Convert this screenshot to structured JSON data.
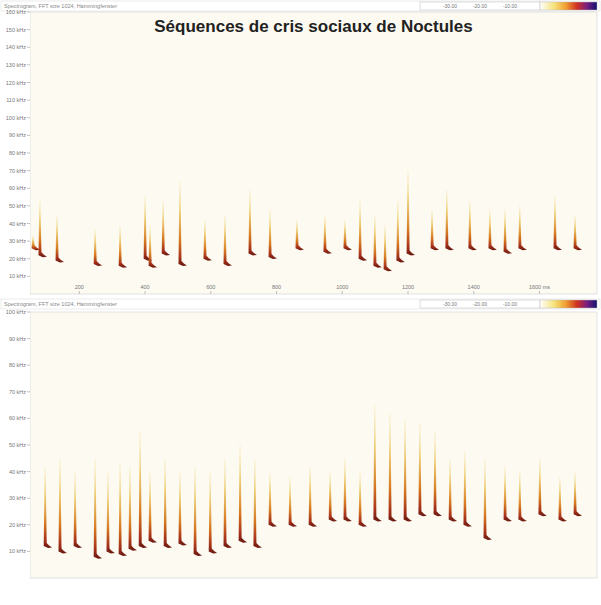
{
  "chart_data": [
    {
      "type": "spectrogram",
      "title": "Séquences de cris sociaux de Noctules",
      "subtitle": "Spectrogram, FFT size 1024, Hammingfenster",
      "xlim": [
        50,
        1775
      ],
      "xticks": [
        200,
        400,
        600,
        800,
        1000,
        1200,
        1400,
        {
          "value": 1600,
          "label": "1600 ms"
        }
      ],
      "ylim": [
        0,
        160
      ],
      "yticks": [
        {
          "value": 10,
          "label": "10 kHz"
        },
        {
          "value": 20,
          "label": "20 kHz"
        },
        {
          "value": 30,
          "label": "30 kHz"
        },
        {
          "value": 40,
          "label": "40 kHz"
        },
        {
          "value": 50,
          "label": "50 kHz"
        },
        {
          "value": 60,
          "label": "60 kHz"
        },
        {
          "value": 70,
          "label": "70 kHz"
        },
        {
          "value": 80,
          "label": "80 kHz"
        },
        {
          "value": 90,
          "label": "90 kHz"
        },
        {
          "value": 100,
          "label": "100 kHz"
        },
        {
          "value": 110,
          "label": "110 kHz"
        },
        {
          "value": 120,
          "label": "120 kHz"
        },
        {
          "value": 130,
          "label": "130 kHz"
        },
        {
          "value": 140,
          "label": "140 kHz"
        },
        {
          "value": 150,
          "label": "150 kHz"
        },
        {
          "value": 160,
          "label": "160 kHz"
        }
      ],
      "x": [
        59,
        80,
        132,
        248,
        324,
        400,
        415,
        455,
        506,
        582,
        643,
        719,
        780,
        862,
        947,
        1008,
        1054,
        1099,
        1130,
        1169,
        1200,
        1273,
        1318,
        1388,
        1449,
        1495,
        1540,
        1647,
        1708
      ],
      "values": [
        33,
        53,
        45,
        37,
        39,
        56,
        39,
        53,
        64,
        42,
        45,
        59,
        48,
        42,
        45,
        42,
        53,
        45,
        39,
        53,
        70,
        48,
        59,
        53,
        48,
        48,
        50,
        56,
        45
      ],
      "low_values": [
        26,
        22,
        19,
        17,
        16,
        20,
        16,
        23,
        17,
        20,
        17,
        23,
        21,
        26,
        24,
        26,
        20,
        16,
        14,
        19,
        23,
        26,
        26,
        26,
        26,
        24,
        26,
        26,
        26
      ],
      "colorbar_lim": [
        -40,
        0
      ],
      "colorbar_ticks": [
        {
          "value": -30,
          "label": "-30.00"
        },
        {
          "value": -20,
          "label": "-20.00"
        },
        {
          "value": -10,
          "label": "-10.00"
        }
      ]
    },
    {
      "type": "spectrogram",
      "subtitle": "Spectrogram, FFT size 1024, Hammingfenster",
      "tick_labels": "y",
      "xlim": [
        50,
        1775
      ],
      "ylim": [
        0,
        100
      ],
      "yticks": [
        {
          "value": 10,
          "label": "10 kHz"
        },
        {
          "value": 20,
          "label": "20 kHz"
        },
        {
          "value": 30,
          "label": "30 kHz"
        },
        {
          "value": 40,
          "label": "40 kHz"
        },
        {
          "value": 50,
          "label": "50 kHz"
        },
        {
          "value": 60,
          "label": "60 kHz"
        },
        {
          "value": 70,
          "label": "70 kHz"
        },
        {
          "value": 80,
          "label": "80 kHz"
        },
        {
          "value": 90,
          "label": "90 kHz"
        },
        {
          "value": 100,
          "label": "100 kHz"
        }
      ],
      "x": [
        96,
        141,
        187,
        248,
        287,
        324,
        354,
        385,
        415,
        461,
        506,
        552,
        598,
        643,
        689,
        734,
        780,
        841,
        902,
        963,
        1008,
        1054,
        1099,
        1145,
        1191,
        1236,
        1282,
        1328,
        1373,
        1434,
        1495,
        1540,
        1601,
        1662,
        1708
      ],
      "values": [
        42,
        45,
        40,
        45,
        40,
        43,
        42,
        55,
        40,
        45,
        40,
        42,
        40,
        45,
        50,
        45,
        40,
        38,
        42,
        40,
        45,
        40,
        65,
        62,
        60,
        58,
        55,
        45,
        48,
        45,
        42,
        40,
        45,
        38,
        40
      ],
      "low_values": [
        12,
        10,
        12,
        8,
        10,
        9,
        11,
        12,
        14,
        12,
        13,
        9,
        10,
        12,
        14,
        12,
        20,
        20,
        20,
        22,
        22,
        20,
        22,
        22,
        22,
        24,
        24,
        22,
        20,
        15,
        22,
        22,
        24,
        22,
        24
      ],
      "colorbar_lim": [
        -40,
        0
      ],
      "colorbar_ticks": [
        {
          "value": -30,
          "label": "-30.00"
        },
        {
          "value": -20,
          "label": "-20.00"
        },
        {
          "value": -10,
          "label": "-10.00"
        }
      ]
    }
  ]
}
